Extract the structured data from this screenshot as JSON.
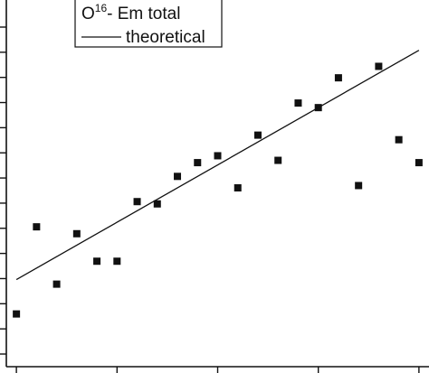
{
  "chart_data": {
    "type": "scatter",
    "xlim": [
      -0.5,
      20.5
    ],
    "ylim": [
      -2.0,
      13.6
    ],
    "grid": false,
    "legend_position": "top-left",
    "tick_count_y": 14,
    "tick_count_x": 5,
    "colors": {
      "marker": "#111111",
      "line": "#111111",
      "axis": "#111111"
    },
    "series": [
      {
        "name": "O16- Em total",
        "legend_main": "O",
        "legend_sup": "16",
        "legend_rest": "- Em total",
        "kind": "scatter",
        "marker": "square",
        "x": [
          0,
          1,
          2,
          3,
          4,
          5,
          6,
          7,
          8,
          9,
          10,
          11,
          12,
          13,
          14,
          15,
          16,
          17,
          18,
          19,
          20
        ],
        "y": [
          0.3,
          4.1,
          1.6,
          3.8,
          2.6,
          2.6,
          5.2,
          5.1,
          6.3,
          6.9,
          7.2,
          5.8,
          8.1,
          7.0,
          9.5,
          9.3,
          10.6,
          5.9,
          11.1,
          7.9,
          6.9
        ]
      },
      {
        "name": "theoretical",
        "kind": "line",
        "x": [
          0,
          20
        ],
        "y": [
          1.8,
          11.8
        ]
      }
    ]
  }
}
